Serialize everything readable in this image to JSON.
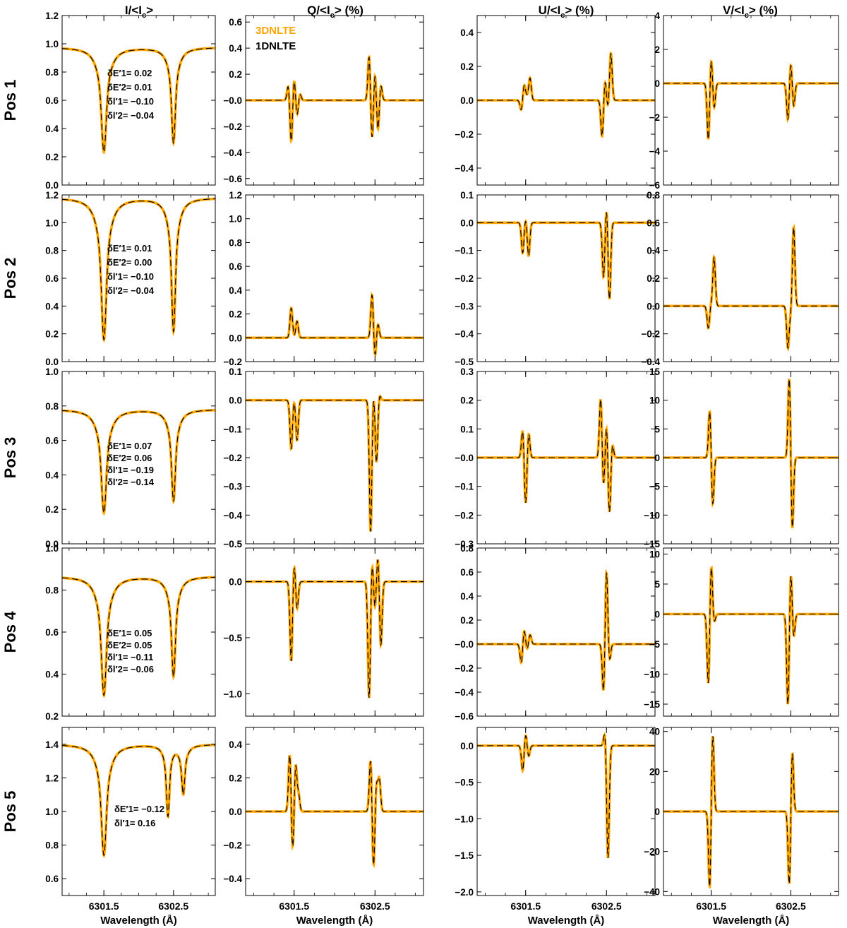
{
  "figure": {
    "xlabel": "Wavelength (Å)",
    "xticks": [
      6301.5,
      6302.5
    ],
    "xtick_labels": [
      "6301.5",
      "6302.5"
    ],
    "legend": [
      {
        "label": "3DNLTE",
        "color": "#FFA500",
        "style": "solid"
      },
      {
        "label": "1DNLTE",
        "color": "#000000",
        "style": "dashed"
      }
    ],
    "column_titles": [
      "I/<I_c>",
      "Q/<I_c> (%)",
      "U/<I_c> (%)",
      "V/<I_c> (%)"
    ],
    "row_labels": [
      "Pos 1",
      "Pos 2",
      "Pos 3",
      "Pos 4",
      "Pos 5"
    ],
    "colors": {
      "model_3d": "#FFA500",
      "model_1d": "#000000"
    }
  },
  "chart_data": {
    "type": "line",
    "x_range": [
      6300.9,
      6303.1
    ],
    "lines": [
      6301.5,
      6302.5
    ],
    "rows": [
      {
        "label": "Pos 1",
        "annotation": [
          "δE′1= 0.02",
          "δE′2= 0.01",
          "δl′1= −0.10",
          "δl′2= −0.04"
        ],
        "panels": [
          {
            "stokes": "I",
            "ylim": [
              0.0,
              1.2
            ],
            "yticks": [
              0.0,
              0.2,
              0.4,
              0.6,
              0.8,
              1.0,
              1.2
            ],
            "tick_labels": [
              "0.0",
              "0.2",
              "0.4",
              "0.6",
              "0.8",
              "1.0",
              "1.2"
            ],
            "continuum": 0.975,
            "minima": [
              0.235,
              0.3
            ]
          },
          {
            "stokes": "Q",
            "ylim": [
              -0.65,
              0.65
            ],
            "yticks": [
              -0.6,
              -0.4,
              -0.2,
              0.0,
              0.2,
              0.4,
              0.6
            ],
            "tick_labels": [
              "−0.6",
              "−0.4",
              "−0.2",
              "−0.0",
              "0.2",
              "0.4",
              "0.6"
            ],
            "peaks_line1": [
              0.12,
              -0.33,
              0.17,
              -0.12,
              0.05
            ],
            "peaks_line2": [
              0.35,
              -0.32,
              0.22,
              -0.24,
              0.12
            ]
          },
          {
            "stokes": "U",
            "ylim": [
              -0.5,
              0.5
            ],
            "yticks": [
              -0.4,
              -0.2,
              0.0,
              0.2,
              0.4
            ],
            "tick_labels": [
              "−0.4",
              "−0.2",
              "0.0",
              "0.2",
              "0.4"
            ],
            "peaks_line1": [
              -0.06,
              0.09,
              0.02,
              0.13
            ],
            "peaks_line2": [
              -0.22,
              0.12,
              -0.05,
              0.28
            ]
          },
          {
            "stokes": "V",
            "ylim": [
              -6,
              4
            ],
            "yticks": [
              -6,
              -4,
              -2,
              0,
              2,
              4
            ],
            "tick_labels": [
              "−6",
              "−4",
              "−2",
              "0",
              "2",
              "4"
            ],
            "peaks_line1": [
              -3.4,
              1.6,
              -1.5
            ],
            "peaks_line2": [
              -2.2,
              1.3,
              -1.4
            ]
          }
        ]
      },
      {
        "label": "Pos 2",
        "annotation": [
          "δE′1= 0.01",
          "δE′2= 0.00",
          "δl′1= −0.10",
          "δl′2= −0.04"
        ],
        "panels": [
          {
            "stokes": "I",
            "ylim": [
              0.0,
              1.2
            ],
            "yticks": [
              0.0,
              0.2,
              0.4,
              0.6,
              0.8,
              1.0,
              1.2
            ],
            "tick_labels": [
              "0.0",
              "0.2",
              "0.4",
              "0.6",
              "0.8",
              "1.0",
              "1.2"
            ],
            "continuum": 1.18,
            "minima": [
              0.16,
              0.22
            ]
          },
          {
            "stokes": "Q",
            "ylim": [
              -0.2,
              1.2
            ],
            "yticks": [
              -0.2,
              0.0,
              0.2,
              0.4,
              0.6,
              0.8,
              1.0,
              1.2
            ],
            "tick_labels": [
              "−0.2",
              "0.0",
              "0.2",
              "0.4",
              "0.6",
              "0.8",
              "1.0",
              "1.2"
            ],
            "peaks_line1": [
              0.25,
              0.0,
              0.14
            ],
            "peaks_line2": [
              0.37,
              -0.17,
              0.12
            ]
          },
          {
            "stokes": "U",
            "ylim": [
              -0.5,
              0.1
            ],
            "yticks": [
              -0.5,
              -0.4,
              -0.3,
              -0.2,
              -0.1,
              0.0,
              0.1
            ],
            "tick_labels": [
              "−0.5",
              "−0.4",
              "−0.3",
              "−0.2",
              "−0.1",
              "0.0",
              "0.1"
            ],
            "peaks_line1": [
              -0.11,
              0.02,
              -0.12
            ],
            "peaks_line2": [
              -0.2,
              0.07,
              -0.28
            ]
          },
          {
            "stokes": "V",
            "ylim": [
              -0.4,
              0.8
            ],
            "yticks": [
              -0.4,
              -0.2,
              0.0,
              0.2,
              0.4,
              0.6,
              0.8
            ],
            "tick_labels": [
              "−0.4",
              "−0.2",
              "0.0",
              "0.2",
              "0.4",
              "0.6",
              "0.8"
            ],
            "peaks_line1": [
              -0.16,
              0.02,
              0.35
            ],
            "peaks_line2": [
              -0.3,
              -0.05,
              0.57
            ]
          }
        ]
      },
      {
        "label": "Pos 3",
        "annotation": [
          "δE′1= 0.07",
          "δE′2= 0.06",
          "δl′1= −0.19",
          "δl′2= −0.14"
        ],
        "panels": [
          {
            "stokes": "I",
            "ylim": [
              0.0,
              1.0
            ],
            "yticks": [
              0.0,
              0.2,
              0.4,
              0.6,
              0.8,
              1.0
            ],
            "tick_labels": [
              "0.0",
              "0.2",
              "0.4",
              "0.6",
              "0.8",
              "1.0"
            ],
            "continuum": 0.78,
            "minima": [
              0.18,
              0.25
            ]
          },
          {
            "stokes": "Q",
            "ylim": [
              -0.5,
              0.1
            ],
            "yticks": [
              -0.5,
              -0.4,
              -0.3,
              -0.2,
              -0.1,
              0.0,
              0.1
            ],
            "tick_labels": [
              "−0.5",
              "−0.4",
              "−0.3",
              "−0.2",
              "−0.1",
              "0.0",
              "0.1"
            ],
            "peaks_line1": [
              -0.17,
              0.01,
              -0.14
            ],
            "peaks_line2": [
              -0.46,
              0.04,
              -0.22,
              0.02
            ]
          },
          {
            "stokes": "U",
            "ylim": [
              -0.3,
              0.3
            ],
            "yticks": [
              -0.3,
              -0.2,
              -0.1,
              0.0,
              0.1,
              0.2,
              0.3
            ],
            "tick_labels": [
              "−0.3",
              "−0.2",
              "−0.1",
              "−0.0",
              "0.1",
              "0.2",
              "0.3"
            ],
            "peaks_line1": [
              0.1,
              -0.17,
              0.09
            ],
            "peaks_line2": [
              0.21,
              -0.11,
              0.12,
              -0.2,
              0.05
            ]
          },
          {
            "stokes": "V",
            "ylim": [
              -15,
              15
            ],
            "yticks": [
              -15,
              -10,
              -5,
              0,
              5,
              10,
              15
            ],
            "tick_labels": [
              "−15",
              "−10",
              "−5",
              "0",
              "5",
              "10",
              "15"
            ],
            "peaks_line1": [
              8.5,
              -8.5
            ],
            "peaks_line2": [
              14.5,
              -13.0
            ]
          }
        ]
      },
      {
        "label": "Pos 4",
        "annotation": [
          "δE′1= 0.05",
          "δE′2= 0.05",
          "δl′1= −0.11",
          "δl′2= −0.06"
        ],
        "panels": [
          {
            "stokes": "I",
            "ylim": [
              0.2,
              1.0
            ],
            "yticks": [
              0.2,
              0.4,
              0.6,
              0.8,
              1.0
            ],
            "tick_labels": [
              "0.2",
              "0.4",
              "0.6",
              "0.8",
              "1.0"
            ],
            "continuum": 0.865,
            "minima": [
              0.3,
              0.39
            ]
          },
          {
            "stokes": "Q",
            "ylim": [
              -1.2,
              0.3
            ],
            "yticks": [
              -1.0,
              -0.5,
              0.0
            ],
            "tick_labels": [
              "−1.0",
              "−0.5",
              "0.0"
            ],
            "peaks_line1": [
              -0.72,
              0.18,
              -0.25
            ],
            "peaks_line2": [
              -1.05,
              0.2,
              -0.25,
              0.25,
              -0.58
            ]
          },
          {
            "stokes": "U",
            "ylim": [
              -0.6,
              0.8
            ],
            "yticks": [
              -0.6,
              -0.4,
              -0.2,
              0.0,
              0.2,
              0.4,
              0.6,
              0.8
            ],
            "tick_labels": [
              "−0.6",
              "−0.4",
              "−0.2",
              "−0.0",
              "0.2",
              "0.4",
              "0.6",
              "0.8"
            ],
            "peaks_line1": [
              -0.16,
              0.12,
              -0.05,
              0.08
            ],
            "peaks_line2": [
              -0.42,
              0.63,
              -0.15
            ]
          },
          {
            "stokes": "V",
            "ylim": [
              -17,
              11
            ],
            "yticks": [
              -15,
              -10,
              -5,
              0,
              5,
              10
            ],
            "tick_labels": [
              "−15",
              "−10",
              "−5",
              "0",
              "5",
              "10"
            ],
            "peaks_line1": [
              -12.0,
              8.5,
              -1.5
            ],
            "peaks_line2": [
              -15.5,
              7.5,
              -4.0
            ]
          }
        ]
      },
      {
        "label": "Pos 5",
        "annotation": [
          "δE′1= −0.12",
          "δl′1= 0.16"
        ],
        "panels": [
          {
            "stokes": "I",
            "ylim": [
              0.5,
              1.5
            ],
            "yticks": [
              0.6,
              0.8,
              1.0,
              1.2,
              1.4
            ],
            "tick_labels": [
              "0.6",
              "0.8",
              "1.0",
              "1.2",
              "1.4"
            ],
            "continuum": 1.4,
            "minima": [
              0.74,
              0.98,
              1.08
            ]
          },
          {
            "stokes": "Q",
            "ylim": [
              -0.5,
              0.5
            ],
            "yticks": [
              -0.4,
              -0.2,
              0.0,
              0.2,
              0.4
            ],
            "tick_labels": [
              "−0.4",
              "−0.2",
              "0.0",
              "0.2",
              "0.4"
            ],
            "peaks_line1": [
              0.35,
              -0.25,
              0.28,
              0.1
            ],
            "peaks_line2": [
              0.32,
              -0.35,
              0.17,
              0.19
            ]
          },
          {
            "stokes": "U",
            "ylim": [
              -2.05,
              0.25
            ],
            "yticks": [
              -2.0,
              -1.5,
              -1.0,
              -0.5,
              0.0
            ],
            "tick_labels": [
              "−2.0",
              "−1.5",
              "−1.0",
              "−0.5",
              "0.0"
            ],
            "peaks_line1": [
              -0.35,
              0.17,
              -0.15
            ],
            "peaks_line2": [
              0.2,
              -1.55
            ]
          },
          {
            "stokes": "V",
            "ylim": [
              -42,
              42
            ],
            "yticks": [
              -40,
              -20,
              0,
              20,
              40
            ],
            "tick_labels": [
              "−40",
              "−20",
              "0",
              "20",
              "40"
            ],
            "peaks_line1": [
              -40,
              40
            ],
            "peaks_line2": [
              -38,
              31
            ]
          }
        ]
      }
    ]
  }
}
